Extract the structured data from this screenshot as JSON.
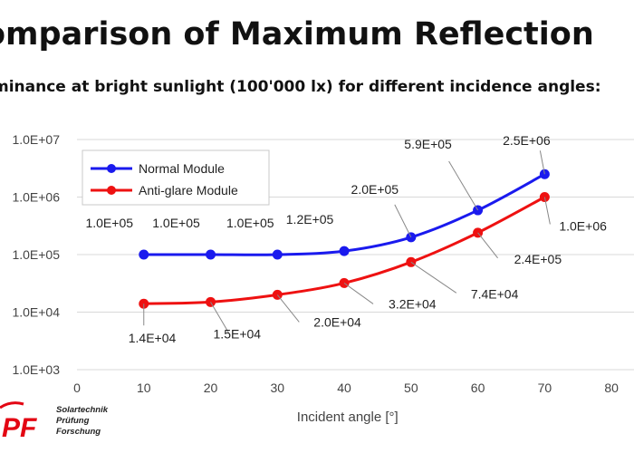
{
  "title": "omparison of Maximum Reflection",
  "subtitle": "minance at bright sunlight (100'000 lx) for different incidence angles:",
  "logo": {
    "letters": "PF",
    "lines": [
      "Solartechnik",
      "Prüfung",
      "Forschung"
    ]
  },
  "chart_data": {
    "type": "line",
    "xlabel": "Incident angle [°]",
    "ylabel": "",
    "xlim": [
      0,
      85
    ],
    "ylim": [
      1000,
      10000000
    ],
    "yscale": "log",
    "x_ticks": [
      0,
      10,
      20,
      30,
      40,
      50,
      60,
      70,
      80
    ],
    "y_ticks": [
      "1.0E+03",
      "1.0E+04",
      "1.0E+05",
      "1.0E+06",
      "1.0E+07"
    ],
    "y_tick_values": [
      1000,
      10000,
      100000,
      1000000,
      10000000
    ],
    "grid": "horizontal",
    "legend_position": "top-left",
    "x": [
      10,
      20,
      30,
      40,
      50,
      60,
      70
    ],
    "series": [
      {
        "name": "Normal Module",
        "color": "#1a1aee",
        "values": [
          100000,
          100000,
          100000,
          115000,
          200000,
          590000,
          2500000
        ],
        "labels": [
          "1.0E+05",
          "1.0E+05",
          "1.0E+05",
          "1.2E+05",
          "2.0E+05",
          "5.9E+05",
          "2.5E+06"
        ]
      },
      {
        "name": "Anti-glare Module",
        "color": "#ee1111",
        "values": [
          14000,
          15000,
          20000,
          32000,
          74000,
          240000,
          1000000
        ],
        "labels": [
          "1.4E+04",
          "1.5E+04",
          "2.0E+04",
          "3.2E+04",
          "7.4E+04",
          "2.4E+05",
          "1.0E+06"
        ]
      }
    ]
  }
}
